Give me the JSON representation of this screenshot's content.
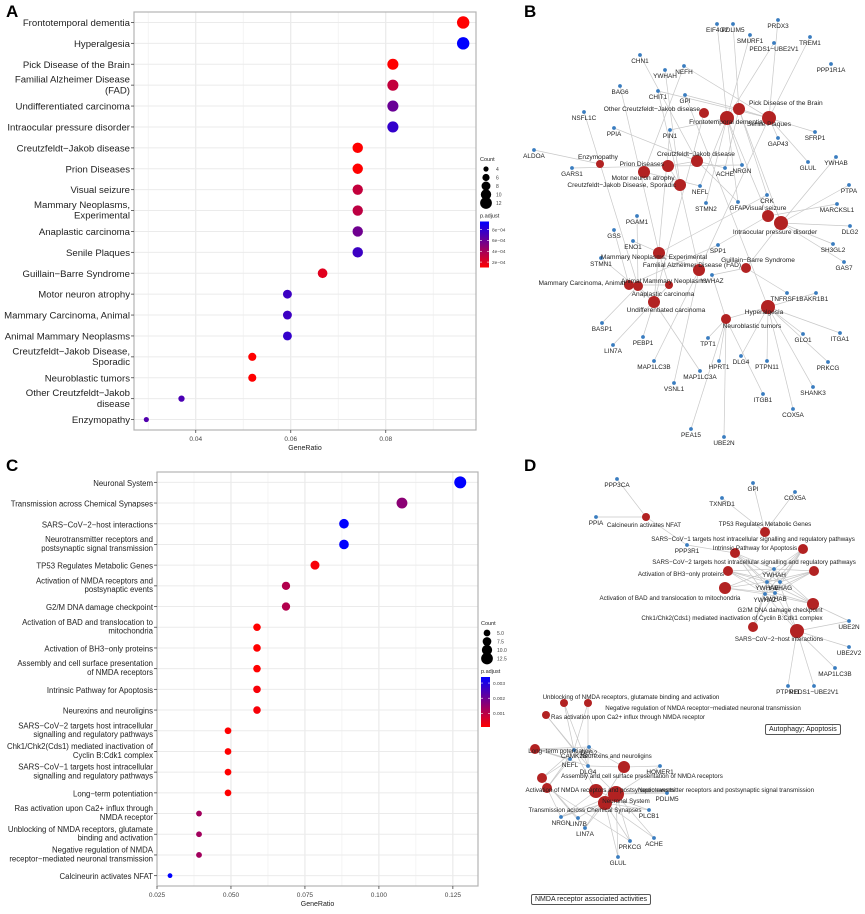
{
  "panels": {
    "A": {
      "letter": "A"
    },
    "B": {
      "letter": "B"
    },
    "C": {
      "letter": "C"
    },
    "D": {
      "letter": "D",
      "cluster_labels": [
        "Autophagy; Apoptosis",
        "NMDA receptor associated activities"
      ]
    }
  },
  "chart_data": [
    {
      "id": "A",
      "type": "scatter",
      "subtype": "dotplot",
      "title": "",
      "xlabel": "GeneRatio",
      "ylabel": "",
      "xlim": [
        0.027,
        0.099
      ],
      "xticks": [
        0.04,
        0.06,
        0.08
      ],
      "xtick_labels": [
        "0.04",
        "0.06",
        "0.08"
      ],
      "grid": true,
      "categories": [
        "Frontotemporal dementia",
        "Hyperalgesia",
        "Pick Disease of the Brain",
        "Familial Alzheimer Disease (FAD)",
        "Undifferentiated carcinoma",
        "Intraocular pressure disorder",
        "Creutzfeldt−Jakob disease",
        "Prion Diseases",
        "Visual seizure",
        "Mammary Neoplasms, Experimental",
        "Anaplastic carcinoma",
        "Senile Plaques",
        "Guillain−Barre Syndrome",
        "Motor neuron atrophy",
        "Mammary Carcinoma, Animal",
        "Animal Mammary Neoplasms",
        "Creutzfeldt−Jakob Disease, Sporadic",
        "Neuroblastic tumors",
        "Other Creutzfeldt−Jakob disease",
        "Enzymopathy"
      ],
      "category_lines": [
        [
          "Frontotemporal dementia"
        ],
        [
          "Hyperalgesia"
        ],
        [
          "Pick Disease of the Brain"
        ],
        [
          "Familial Alzheimer Disease",
          "(FAD)"
        ],
        [
          "Undifferentiated carcinoma"
        ],
        [
          "Intraocular pressure disorder"
        ],
        [
          "Creutzfeldt−Jakob disease"
        ],
        [
          "Prion Diseases"
        ],
        [
          "Visual seizure"
        ],
        [
          "Mammary Neoplasms,",
          "Experimental"
        ],
        [
          "Anaplastic carcinoma"
        ],
        [
          "Senile Plaques"
        ],
        [
          "Guillain−Barre Syndrome"
        ],
        [
          "Motor neuron atrophy"
        ],
        [
          "Mammary Carcinoma, Animal"
        ],
        [
          "Animal Mammary Neoplasms"
        ],
        [
          "Creutzfeldt−Jakob Disease,",
          "Sporadic"
        ],
        [
          "Neuroblastic tumors"
        ],
        [
          "Other Creutzfeldt−Jakob",
          "disease"
        ],
        [
          "Enzymopathy"
        ]
      ],
      "gene_ratio": [
        0.0963,
        0.0963,
        0.0815,
        0.0815,
        0.0815,
        0.0815,
        0.0741,
        0.0741,
        0.0741,
        0.0741,
        0.0741,
        0.0741,
        0.0667,
        0.0593,
        0.0593,
        0.0593,
        0.0519,
        0.0519,
        0.037,
        0.0296
      ],
      "count": [
        13,
        13,
        11,
        11,
        11,
        11,
        10,
        10,
        10,
        10,
        10,
        10,
        9,
        8,
        8,
        8,
        7,
        7,
        5,
        4
      ],
      "p_adjust": [
        5e-05,
        0.00095,
        8e-05,
        0.0003,
        0.0006,
        0.00078,
        6e-05,
        6e-05,
        0.0003,
        0.00032,
        0.00058,
        0.00075,
        0.0002,
        0.00075,
        0.00075,
        0.00078,
        8e-05,
        8e-05,
        0.0007,
        0.00068
      ],
      "legend_size": {
        "title": "Count",
        "values": [
          4,
          6,
          8,
          10,
          12
        ],
        "labels": [
          "4",
          "6",
          "8",
          "10",
          "12"
        ]
      },
      "legend_color": {
        "title": "p.adjust",
        "min": 0.0001,
        "max": 0.00095,
        "ticks": [
          0.0002,
          0.0004,
          0.0006,
          0.0008
        ],
        "tick_labels": [
          "2e−04",
          "4e−04",
          "6e−04",
          "8e−04"
        ],
        "low_color": "#ff0000",
        "high_color": "#0000ff"
      },
      "legend_position": "right"
    },
    {
      "id": "C",
      "type": "scatter",
      "subtype": "dotplot",
      "title": "",
      "xlabel": "GeneRatio",
      "ylabel": "",
      "xlim": [
        0.025,
        0.1335
      ],
      "xticks": [
        0.025,
        0.05,
        0.075,
        0.1,
        0.125
      ],
      "xtick_labels": [
        "0.025",
        "0.050",
        "0.075",
        "0.100",
        "0.125"
      ],
      "grid": true,
      "categories": [
        "Neuronal System",
        "Transmission across Chemical Synapses",
        "SARS−CoV−2−host interactions",
        "Neurotransmitter receptors and postsynaptic signal transmission",
        "TP53 Regulates Metabolic Genes",
        "Activation of NMDA receptors and postsynaptic events",
        "G2/M DNA damage checkpoint",
        "Activation of BAD and translocation to mitochondria",
        "Activation of BH3−only proteins",
        "Assembly and cell surface presentation of NMDA receptors",
        "Intrinsic Pathway for Apoptosis",
        "Neurexins and neuroligins",
        "SARS−CoV−2 targets host intracellular signalling and regulatory pathways",
        "Chk1/Chk2(Cds1) mediated inactivation of Cyclin B:Cdk1 complex",
        "SARS−CoV−1 targets host intracellular signalling and regulatory pathways",
        "Long−term potentiation",
        "Ras activation upon Ca2+ influx through NMDA receptor",
        "Unblocking of NMDA receptors, glutamate binding and activation",
        "Negative regulation of NMDA receptor−mediated neuronal transmission",
        "Calcineurin activates NFAT"
      ],
      "category_lines": [
        [
          "Neuronal System"
        ],
        [
          "Transmission across Chemical Synapses"
        ],
        [
          "SARS−CoV−2−host interactions"
        ],
        [
          "Neurotransmitter receptors and",
          "postsynaptic signal transmission"
        ],
        [
          "TP53 Regulates Metabolic Genes"
        ],
        [
          "Activation of NMDA receptors and",
          "postsynaptic events"
        ],
        [
          "G2/M DNA damage checkpoint"
        ],
        [
          "Activation of BAD and translocation to",
          "mitochondria"
        ],
        [
          "Activation of BH3−only proteins"
        ],
        [
          "Assembly and cell surface presentation",
          "of NMDA receptors"
        ],
        [
          "Intrinsic Pathway for Apoptosis"
        ],
        [
          "Neurexins and neuroligins"
        ],
        [
          "SARS−CoV−2 targets host intracellular",
          "signalling and regulatory pathways"
        ],
        [
          "Chk1/Chk2(Cds1) mediated inactivation of",
          "Cyclin B:Cdk1 complex"
        ],
        [
          "SARS−CoV−1 targets host intracellular",
          "signalling and regulatory pathways"
        ],
        [
          "Long−term potentiation"
        ],
        [
          "Ras activation upon Ca2+ influx through",
          "NMDA receptor"
        ],
        [
          "Unblocking of NMDA receptors, glutamate",
          "binding and activation"
        ],
        [
          "Negative regulation of NMDA",
          "receptor−mediated neuronal transmission"
        ],
        [
          "Calcineurin activates NFAT"
        ]
      ],
      "gene_ratio": [
        0.1275,
        0.1078,
        0.0882,
        0.0882,
        0.0784,
        0.0686,
        0.0686,
        0.0588,
        0.0588,
        0.0588,
        0.0588,
        0.0588,
        0.049,
        0.049,
        0.049,
        0.049,
        0.0392,
        0.0392,
        0.0392,
        0.0294
      ],
      "count": [
        13,
        11,
        9,
        9,
        8,
        7,
        7,
        6,
        6,
        6,
        6,
        6,
        5,
        5,
        5,
        5,
        4,
        4,
        4,
        3
      ],
      "p_adjust": [
        0.0034,
        0.0016,
        0.0034,
        0.0034,
        0.0002,
        0.0011,
        0.0011,
        0.0001,
        0.0001,
        0.0001,
        0.0002,
        0.0002,
        0.0001,
        0.0001,
        0.0001,
        0.0001,
        0.0013,
        0.0013,
        0.0013,
        0.0034
      ],
      "legend_size": {
        "title": "Count",
        "values": [
          5.0,
          7.5,
          10.0,
          12.5
        ],
        "labels": [
          "5.0",
          "7.5",
          "10.0",
          "12.5"
        ]
      },
      "legend_color": {
        "title": "p.adjust",
        "min": 0.0001,
        "max": 0.0034,
        "ticks": [
          0.001,
          0.002,
          0.003
        ],
        "tick_labels": [
          "0.001",
          "0.002",
          "0.003"
        ],
        "low_color": "#ff0000",
        "high_color": "#0000ff"
      },
      "legend_position": "right"
    },
    {
      "id": "B",
      "type": "network",
      "term_color": "#b22222",
      "gene_color": "#3a7dc0",
      "terms": [
        "Frontotemporal dementia",
        "Hyperalgesia",
        "Pick Disease of the Brain",
        "Familial Alzheimer Disease (FAD)",
        "Undifferentiated carcinoma",
        "Intraocular pressure disorder",
        "Creutzfeldt−Jakob disease",
        "Prion Diseases",
        "Visual seizure",
        "Mammary Neoplasms, Experimental",
        "Anaplastic carcinoma",
        "Senile Plaques",
        "Guillain−Barre Syndrome",
        "Motor neuron atrophy",
        "Mammary Carcinoma, Animal",
        "Animal Mammary Neoplasms",
        "Creutzfeldt−Jakob Disease, Sporadic",
        "Neuroblastic tumors",
        "Other Creutzfeldt−Jakob disease",
        "Enzymopathy"
      ],
      "genes": [
        "EIF4G2",
        "PDLIM5",
        "PRDX3",
        "SMURF1",
        "TREM1",
        "PEDS1−UBE2V1",
        "PPP1R1A",
        "CHN1",
        "NEFH",
        "YWHAH",
        "CHIT1",
        "GPI",
        "BAG6",
        "NSFL1C",
        "PPIA",
        "PIN1",
        "GAP43",
        "SFRP1",
        "YWHAB",
        "ALDOA",
        "GARS1",
        "ACHE",
        "NRGN",
        "GLUL",
        "NEFL",
        "CRK",
        "GFAP",
        "STMN2",
        "PTPA",
        "MARCKSL1",
        "PGAM1",
        "DLG2",
        "GSS",
        "ENO1",
        "SPP1",
        "SH3GL2",
        "STMN1",
        "GAS7",
        "YWHAZ",
        "AKR1B1",
        "TNFRSF1B",
        "BASP1",
        "TPT1",
        "GLO1",
        "ITGA1",
        "LIN7A",
        "PEBP1",
        "MAP1LC3B",
        "DLG4",
        "PRKCG",
        "HPRT1",
        "PTPN11",
        "MAP1LC3A",
        "VSNL1",
        "SHANK3",
        "ITGB1",
        "COX5A",
        "PEA15",
        "UBE2N"
      ]
    },
    {
      "id": "D",
      "type": "network",
      "term_color": "#b22222",
      "gene_color": "#3a7dc0",
      "terms": [
        "Calcineurin activates NFAT",
        "TP53 Regulates Metabolic Genes",
        "SARS−CoV−1 targets host intracellular signalling and regulatory pathways",
        "Intrinsic Pathway for Apoptosis",
        "SARS−CoV−2 targets host intracellular signalling and regulatory pathways",
        "Activation of BH3−only proteins",
        "Activation of BAD and translocation to mitochondria",
        "G2/M DNA damage checkpoint",
        "Chk1/Chk2(Cds1) mediated inactivation of Cyclin B:Cdk1 complex",
        "SARS−CoV−2−host interactions",
        "Unblocking of NMDA receptors, glutamate binding and activation",
        "Negative regulation of NMDA receptor−mediated neuronal transmission",
        "Ras activation upon Ca2+ influx through NMDA receptor",
        "Long−term potentiation",
        "Neurexins and neuroligins",
        "Assembly and cell surface presentation of NMDA receptors",
        "Activation of NMDA receptors and postsynaptic events",
        "Neurotransmitter receptors and postsynaptic signal transmission",
        "Neuronal System",
        "Transmission across Chemical Synapses"
      ],
      "genes": [
        "PPP3CA",
        "PPIA",
        "TXNRD1",
        "GPI",
        "COX5A",
        "PPP3R1",
        "YWHAH",
        "YWHAG",
        "YWHAE",
        "YWHAB",
        "YWHAZ",
        "UBE2N",
        "UBE2V2",
        "MAP1LC3B",
        "PEDS1−UBE2V1",
        "PTPN11",
        "CAMK2B",
        "DLG2",
        "NEFL",
        "DLG4",
        "HOMER1",
        "PDLIM5",
        "PLCB1",
        "NRGN",
        "LIN7B",
        "LIN7A",
        "ACHE",
        "PRKCG",
        "GLUL"
      ]
    }
  ]
}
